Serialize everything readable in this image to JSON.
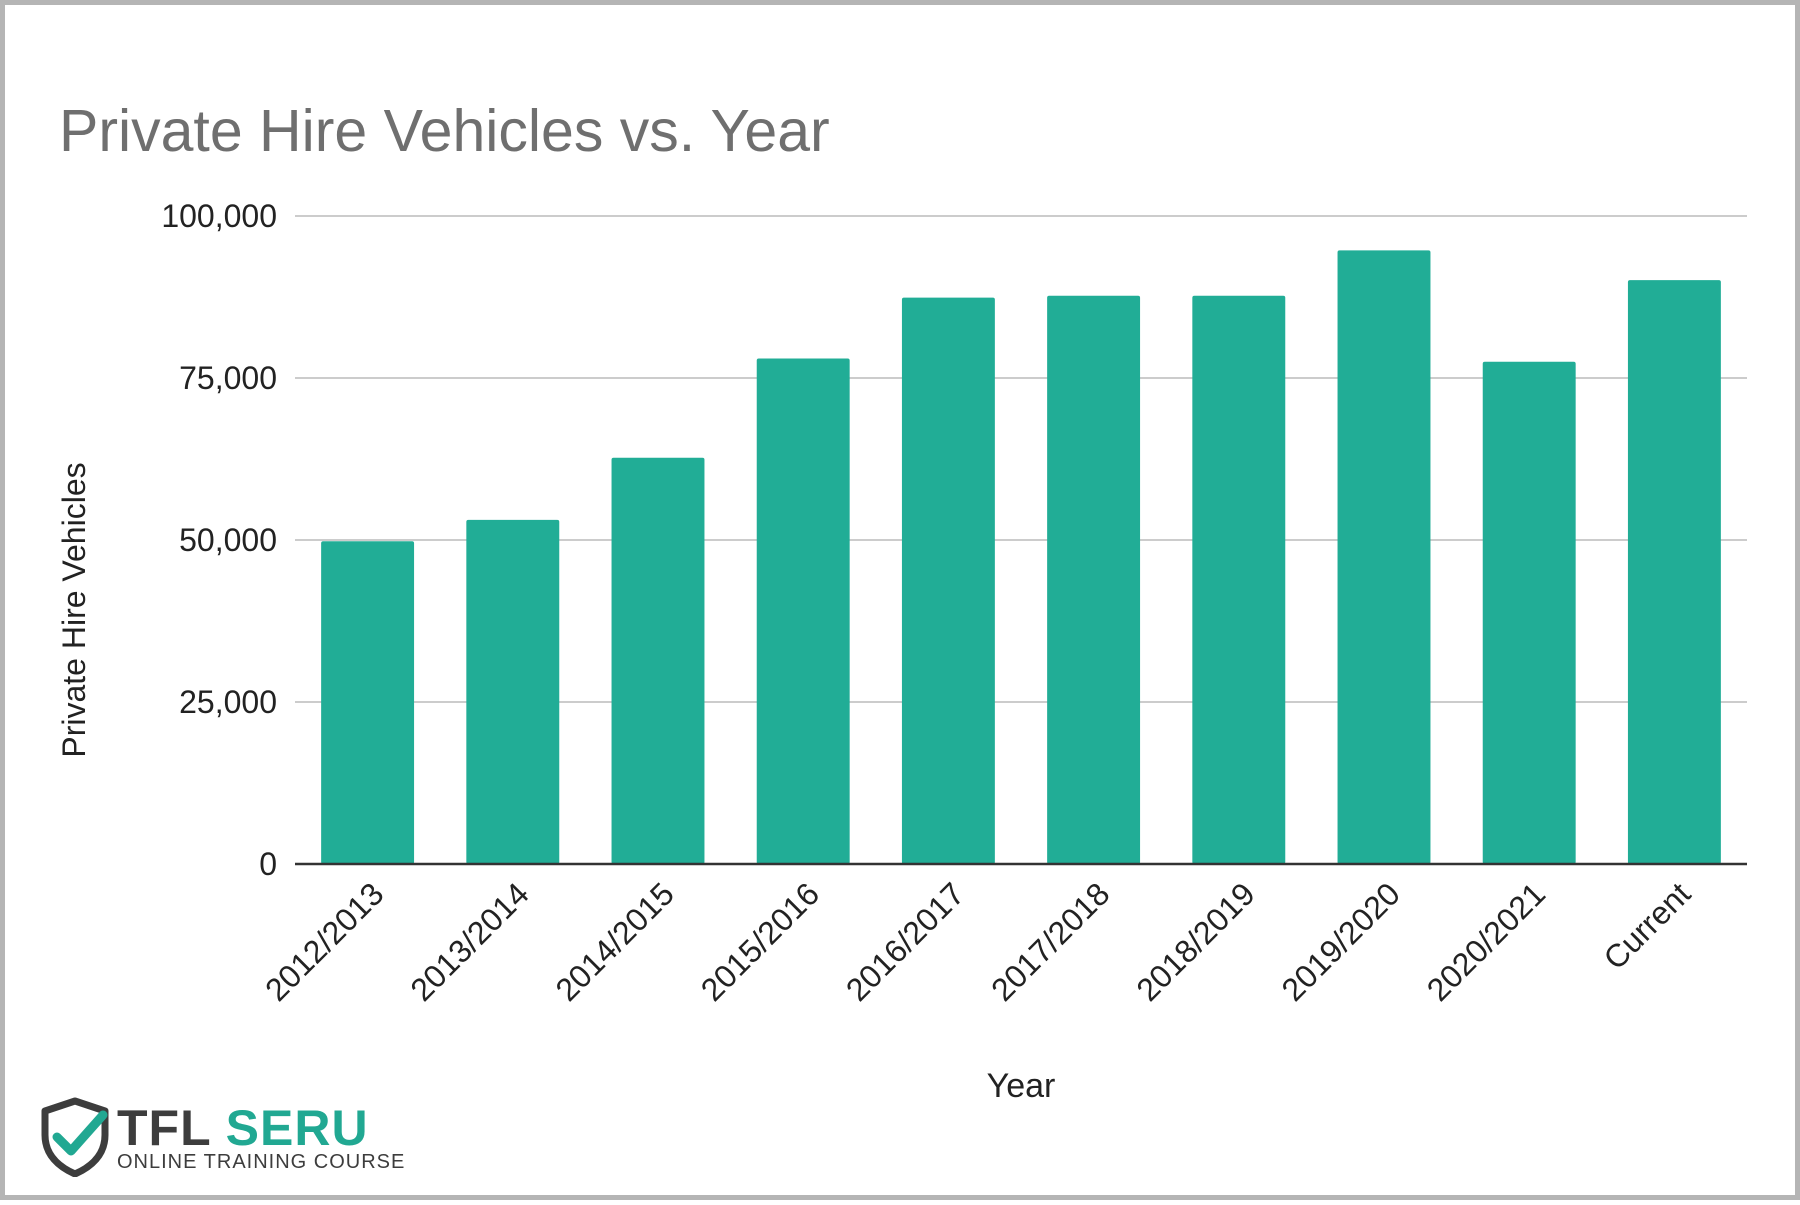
{
  "chart_data": {
    "type": "bar",
    "title": "Private Hire Vehicles vs. Year",
    "xlabel": "Year",
    "ylabel": "Private Hire Vehicles",
    "categories": [
      "2012/2013",
      "2013/2014",
      "2014/2015",
      "2015/2016",
      "2016/2017",
      "2017/2018",
      "2018/2019",
      "2019/2020",
      "2020/2021",
      "Current"
    ],
    "values": [
      49800,
      53100,
      62700,
      78000,
      87400,
      87700,
      87700,
      94700,
      77500,
      90100
    ],
    "ylim": [
      0,
      100000
    ],
    "yticks": [
      0,
      25000,
      50000,
      75000,
      100000
    ],
    "ytick_labels": [
      "0",
      "25,000",
      "50,000",
      "75,000",
      "100,000"
    ],
    "grid": true,
    "legend": "none",
    "bar_color": "#21ad96"
  },
  "logo": {
    "brand_1": "TFL",
    "brand_2": "SERU",
    "subtitle": "ONLINE TRAINING COURSE",
    "icon": "shield-check-icon",
    "accent_color": "#21a892",
    "dark_color": "#3d3d3d"
  }
}
